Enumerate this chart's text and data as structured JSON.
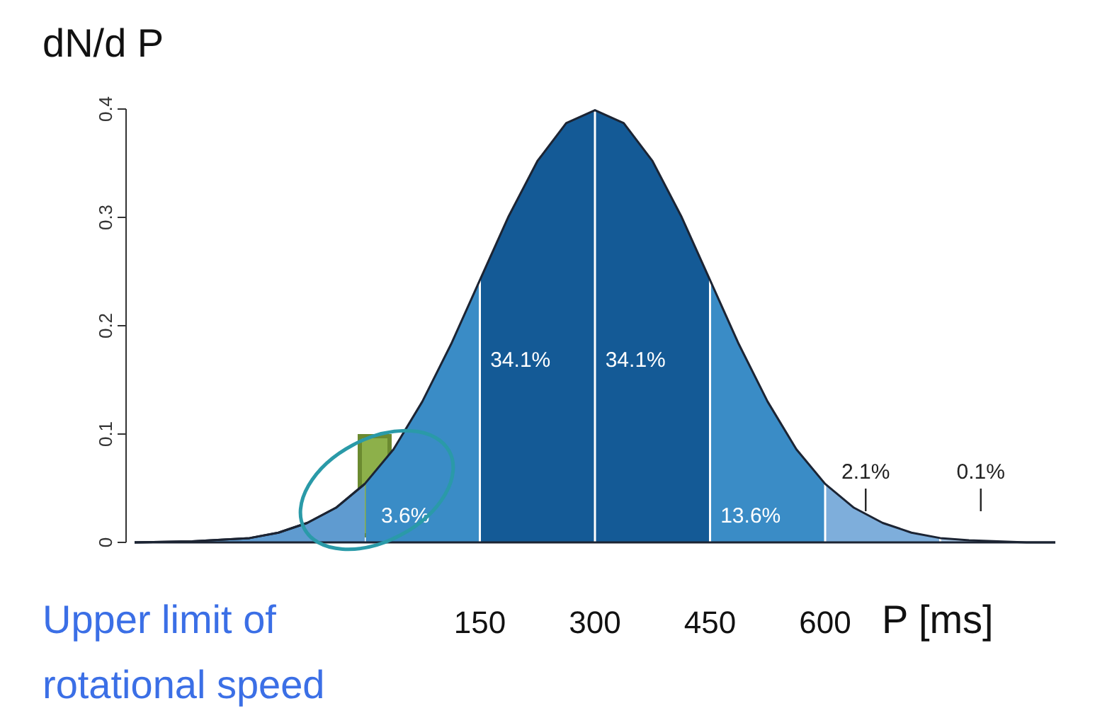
{
  "chart_data": {
    "type": "area",
    "xlabel": "P [ms]",
    "ylabel": "dN/d P",
    "xlim": [
      -300,
      900
    ],
    "xticks": [
      150,
      300,
      450,
      600
    ],
    "ylim": [
      0,
      0.4
    ],
    "yticks": [
      0.0,
      {
        "value": 0.1,
        "label": "0.1"
      },
      {
        "value": 0.2,
        "label": "0.2"
      },
      {
        "value": 0.3,
        "label": "0.3"
      },
      {
        "value": 0.4,
        "label": "0.4"
      }
    ],
    "series": [
      {
        "color": "#5f9bd0",
        "x": [
          -300,
          -225,
          -150,
          -112.5,
          -75,
          -37.5,
          0
        ],
        "values": [
          0.0,
          0.001,
          0.004,
          0.009,
          0.018,
          0.032,
          0.054
        ]
      },
      {
        "type": "line",
        "color": "#1c2433",
        "x": [
          -300,
          -225,
          -150,
          -112.5,
          -75,
          -37.5,
          0,
          37.5,
          75,
          112.5,
          150,
          187.5,
          225,
          262.5,
          300,
          337.5,
          375,
          412.5,
          450,
          487.5,
          525,
          562.5,
          600,
          637.5,
          675,
          712.5,
          750,
          787.5,
          825,
          862.5,
          900
        ],
        "values": [
          0.0,
          0.001,
          0.004,
          0.009,
          0.018,
          0.032,
          0.054,
          0.086,
          0.13,
          0.183,
          0.242,
          0.301,
          0.352,
          0.387,
          0.399,
          0.387,
          0.352,
          0.301,
          0.242,
          0.183,
          0.13,
          0.086,
          0.054,
          0.032,
          0.018,
          0.009,
          0.004,
          0.002,
          0.001,
          0.0,
          0.0
        ]
      }
    ],
    "bands": [
      {
        "axis": "x",
        "from": 0,
        "to": 150,
        "label": "3.6%",
        "color": "#3a8cc6"
      },
      {
        "axis": "x",
        "from": 150,
        "to": 300,
        "label": "34.1%",
        "color": "#145a96"
      },
      {
        "axis": "x",
        "from": 300,
        "to": 450,
        "label": "34.1%",
        "color": "#145a96"
      },
      {
        "axis": "x",
        "from": 450,
        "to": 600,
        "label": "13.6%",
        "color": "#3a8cc6"
      },
      {
        "axis": "x",
        "from": 600,
        "to": 750,
        "label": "2.1%",
        "color": "#7eaedb"
      },
      {
        "axis": "x",
        "from": 750,
        "to": 900,
        "label": "0.1%",
        "color": "#a8c9e8"
      }
    ],
    "annotations": [
      "Upper limit of rotational speed"
    ]
  }
}
